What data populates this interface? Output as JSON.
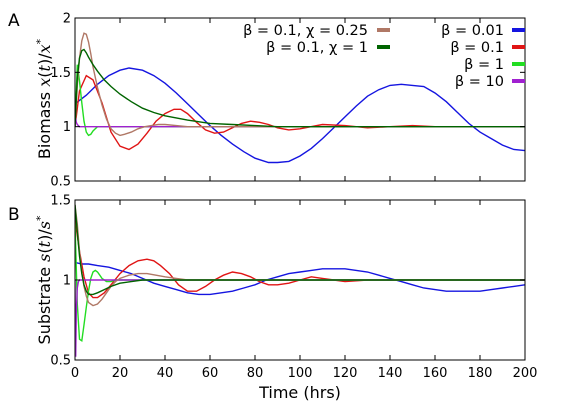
{
  "chart_data": [
    {
      "panel": "A",
      "type": "line",
      "xlabel": "",
      "ylabel": "Biomass x(t)/x*",
      "xlim": [
        0,
        200
      ],
      "ylim": [
        0.5,
        2
      ],
      "yticks": [
        0.5,
        1,
        1.5,
        2
      ],
      "ytick_labels": [
        "0.5",
        "1",
        "1.5",
        "2"
      ],
      "grid": false,
      "legend": "top-right",
      "series": [
        {
          "name": "β = 0.01",
          "color": "#1515e0",
          "x": [
            0,
            5,
            10,
            15,
            20,
            24,
            30,
            35,
            40,
            45,
            50,
            55,
            60,
            65,
            70,
            75,
            80,
            86,
            90,
            95,
            100,
            105,
            110,
            115,
            120,
            125,
            130,
            135,
            140,
            145,
            150,
            155,
            160,
            165,
            170,
            175,
            180,
            185,
            190,
            195,
            200
          ],
          "y": [
            1.21,
            1.29,
            1.39,
            1.47,
            1.52,
            1.54,
            1.52,
            1.47,
            1.4,
            1.31,
            1.21,
            1.11,
            1.01,
            0.92,
            0.84,
            0.77,
            0.71,
            0.67,
            0.67,
            0.68,
            0.73,
            0.8,
            0.89,
            0.99,
            1.09,
            1.19,
            1.28,
            1.34,
            1.38,
            1.39,
            1.38,
            1.37,
            1.31,
            1.23,
            1.13,
            1.03,
            0.95,
            0.89,
            0.83,
            0.79,
            0.78
          ]
        },
        {
          "name": "β = 0.1",
          "color": "#e01515",
          "x": [
            0,
            2,
            5,
            8,
            12,
            16,
            20,
            24,
            28,
            32,
            36,
            40,
            44,
            47,
            50,
            54,
            58,
            62,
            66,
            70,
            74,
            78,
            82,
            86,
            90,
            95,
            100,
            110,
            120,
            130,
            140,
            150,
            160,
            170,
            180,
            190,
            200
          ],
          "y": [
            1.0,
            1.33,
            1.47,
            1.43,
            1.22,
            0.95,
            0.82,
            0.79,
            0.84,
            0.94,
            1.05,
            1.12,
            1.16,
            1.16,
            1.12,
            1.04,
            0.97,
            0.94,
            0.95,
            0.99,
            1.03,
            1.05,
            1.04,
            1.02,
            0.99,
            0.97,
            0.98,
            1.02,
            1.01,
            0.99,
            1.0,
            1.01,
            1.0,
            1.0,
            1.0,
            1.0,
            1.0
          ]
        },
        {
          "name": "β = 1",
          "color": "#22dd22",
          "x": [
            0,
            1,
            2,
            3,
            4,
            5,
            6,
            7,
            8,
            9,
            10,
            11,
            12,
            14,
            16,
            20,
            30,
            50,
            80,
            120,
            160,
            200
          ],
          "y": [
            1.0,
            1.57,
            1.42,
            1.22,
            1.05,
            0.95,
            0.92,
            0.93,
            0.96,
            0.98,
            1.0,
            1.0,
            1.0,
            1.0,
            1.0,
            1.0,
            1.0,
            1.0,
            1.0,
            1.0,
            1.0,
            1.0
          ]
        },
        {
          "name": "β = 10",
          "color": "#a020d0",
          "x": [
            0,
            0.3,
            0.6,
            1,
            1.5,
            2,
            3,
            4,
            6,
            10,
            20,
            50,
            100,
            150,
            200
          ],
          "y": [
            1.0,
            1.08,
            1.04,
            1.02,
            1.01,
            1.0,
            1.0,
            1.0,
            1.0,
            1.0,
            1.0,
            1.0,
            1.0,
            1.0,
            1.0
          ]
        },
        {
          "name": "β = 0.1, χ = 0.25",
          "color": "#b07866",
          "x": [
            0,
            1,
            2,
            3,
            4,
            5,
            6,
            7,
            8,
            10,
            12,
            14,
            16,
            18,
            20,
            22,
            25,
            28,
            31,
            34,
            37,
            40,
            45,
            50,
            55,
            60,
            70,
            80,
            100,
            130,
            160,
            200
          ],
          "y": [
            1.0,
            1.38,
            1.63,
            1.79,
            1.86,
            1.85,
            1.78,
            1.67,
            1.55,
            1.36,
            1.2,
            1.07,
            0.98,
            0.94,
            0.92,
            0.93,
            0.95,
            0.98,
            1.0,
            1.01,
            1.02,
            1.02,
            1.01,
            1.0,
            1.0,
            1.0,
            1.0,
            1.0,
            1.0,
            1.0,
            1.0,
            1.0
          ]
        },
        {
          "name": "β = 0.1, χ = 1",
          "color": "#006400",
          "x": [
            0,
            1,
            2,
            3,
            4,
            5,
            6,
            8,
            10,
            13,
            16,
            20,
            25,
            30,
            35,
            40,
            50,
            60,
            70,
            80,
            90,
            100,
            120,
            150,
            200
          ],
          "y": [
            1.0,
            1.45,
            1.63,
            1.7,
            1.71,
            1.68,
            1.64,
            1.57,
            1.51,
            1.43,
            1.37,
            1.3,
            1.23,
            1.17,
            1.13,
            1.1,
            1.06,
            1.03,
            1.02,
            1.01,
            1.0,
            1.0,
            1.0,
            1.0,
            1.0
          ]
        }
      ]
    },
    {
      "panel": "B",
      "type": "line",
      "xlabel": "Time (hrs)",
      "ylabel": "Substrate s(t)/s*",
      "xlim": [
        0,
        200
      ],
      "ylim": [
        0.5,
        1.5
      ],
      "xticks": [
        0,
        20,
        40,
        60,
        80,
        100,
        120,
        140,
        160,
        180,
        200
      ],
      "xtick_labels": [
        "0",
        "20",
        "40",
        "60",
        "80",
        "100",
        "120",
        "140",
        "160",
        "180",
        "200"
      ],
      "yticks": [
        0.5,
        1,
        1.5
      ],
      "ytick_labels": [
        "0.5",
        "1",
        "1.5"
      ],
      "grid": false,
      "series": [
        {
          "name": "β = 0.01",
          "color": "#1515e0",
          "x": [
            0,
            3,
            6,
            10,
            15,
            20,
            25,
            30,
            35,
            40,
            45,
            50,
            55,
            60,
            65,
            70,
            75,
            80,
            85,
            90,
            95,
            100,
            105,
            110,
            115,
            120,
            125,
            130,
            135,
            140,
            145,
            150,
            155,
            160,
            165,
            170,
            175,
            180,
            185,
            190,
            195,
            200
          ],
          "y": [
            1.11,
            1.1,
            1.1,
            1.09,
            1.08,
            1.06,
            1.04,
            1.01,
            0.98,
            0.96,
            0.94,
            0.92,
            0.91,
            0.91,
            0.92,
            0.93,
            0.95,
            0.97,
            1.0,
            1.02,
            1.04,
            1.05,
            1.06,
            1.07,
            1.07,
            1.07,
            1.06,
            1.05,
            1.03,
            1.01,
            0.99,
            0.97,
            0.95,
            0.94,
            0.93,
            0.93,
            0.93,
            0.93,
            0.94,
            0.95,
            0.96,
            0.97
          ]
        },
        {
          "name": "β = 0.1",
          "color": "#e01515",
          "x": [
            0,
            2,
            4,
            6,
            8,
            10,
            13,
            16,
            20,
            24,
            28,
            32,
            35,
            38,
            42,
            46,
            50,
            54,
            58,
            62,
            66,
            70,
            74,
            78,
            82,
            86,
            90,
            95,
            100,
            105,
            110,
            115,
            120,
            130,
            140,
            150,
            160,
            170,
            180,
            200
          ],
          "y": [
            1.38,
            1.18,
            1.02,
            0.92,
            0.89,
            0.89,
            0.92,
            0.97,
            1.04,
            1.09,
            1.12,
            1.13,
            1.12,
            1.09,
            1.04,
            0.97,
            0.93,
            0.93,
            0.96,
            1.0,
            1.03,
            1.05,
            1.04,
            1.02,
            0.99,
            0.97,
            0.97,
            0.98,
            1.0,
            1.02,
            1.01,
            1.0,
            0.99,
            1.0,
            1.0,
            1.0,
            1.0,
            1.0,
            1.0,
            1.0
          ]
        },
        {
          "name": "β = 1",
          "color": "#22dd22",
          "x": [
            0,
            1,
            2,
            3,
            4,
            5,
            6,
            7,
            8,
            9,
            10,
            11,
            12,
            13,
            14,
            16,
            18,
            20,
            25,
            30,
            40,
            60,
            100,
            150,
            200
          ],
          "y": [
            1.36,
            0.85,
            0.63,
            0.62,
            0.72,
            0.83,
            0.93,
            1.01,
            1.05,
            1.06,
            1.05,
            1.03,
            1.01,
            1.0,
            0.99,
            0.99,
            1.0,
            1.0,
            1.0,
            1.0,
            1.0,
            1.0,
            1.0,
            1.0,
            1.0
          ]
        },
        {
          "name": "β = 10",
          "color": "#a020d0",
          "x": [
            0,
            0.3,
            0.6,
            1,
            1.5,
            2,
            3,
            4,
            6,
            10,
            20,
            50,
            100,
            150,
            200
          ],
          "y": [
            1.0,
            0.52,
            0.8,
            0.95,
            0.99,
            1.0,
            1.0,
            1.0,
            1.0,
            1.0,
            1.0,
            1.0,
            1.0,
            1.0,
            1.0
          ]
        },
        {
          "name": "β = 0.1, χ = 0.25",
          "color": "#b07866",
          "x": [
            0,
            1,
            2,
            3,
            4,
            5,
            6,
            8,
            10,
            12,
            14,
            16,
            18,
            20,
            24,
            28,
            32,
            36,
            40,
            45,
            50,
            55,
            60,
            70,
            80,
            100,
            150,
            200
          ],
          "y": [
            1.47,
            1.35,
            1.18,
            1.05,
            0.96,
            0.9,
            0.86,
            0.84,
            0.85,
            0.88,
            0.92,
            0.96,
            0.99,
            1.01,
            1.03,
            1.04,
            1.04,
            1.03,
            1.02,
            1.01,
            1.0,
            1.0,
            1.0,
            1.0,
            1.0,
            1.0,
            1.0,
            1.0
          ]
        },
        {
          "name": "β = 0.1, χ = 1",
          "color": "#006400",
          "x": [
            0,
            1,
            2,
            3,
            4,
            5,
            6,
            8,
            10,
            13,
            16,
            20,
            25,
            30,
            40,
            50,
            60,
            80,
            100,
            150,
            200
          ],
          "y": [
            1.47,
            1.3,
            1.15,
            1.04,
            0.97,
            0.93,
            0.91,
            0.91,
            0.92,
            0.94,
            0.96,
            0.98,
            0.99,
            1.0,
            1.0,
            1.0,
            1.0,
            1.0,
            1.0,
            1.0,
            1.0
          ]
        }
      ]
    }
  ]
}
